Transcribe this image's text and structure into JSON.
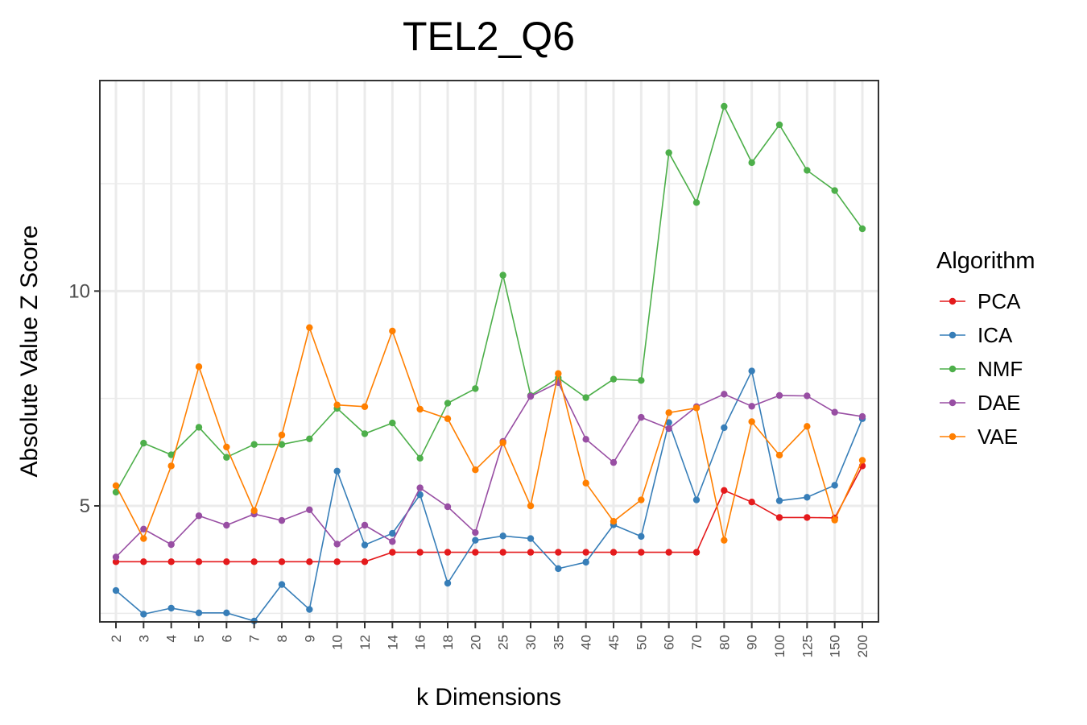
{
  "chart_data": {
    "type": "line",
    "title": "TEL2_Q6",
    "xlabel": "k Dimensions",
    "ylabel": "Absolute Value Z Score",
    "categories": [
      "2",
      "3",
      "4",
      "5",
      "6",
      "7",
      "8",
      "9",
      "10",
      "12",
      "14",
      "16",
      "18",
      "20",
      "25",
      "30",
      "35",
      "40",
      "45",
      "50",
      "60",
      "70",
      "80",
      "90",
      "100",
      "125",
      "150",
      "200"
    ],
    "yticks": [
      5,
      10
    ],
    "ylim": [
      2.3,
      14.9
    ],
    "grid": true,
    "legend": {
      "title": "Algorithm",
      "position": "right"
    },
    "series": [
      {
        "name": "PCA",
        "color": "#E41A1C",
        "values": [
          3.7,
          3.7,
          3.7,
          3.7,
          3.7,
          3.7,
          3.7,
          3.7,
          3.7,
          3.7,
          3.92,
          3.92,
          3.92,
          3.92,
          3.92,
          3.92,
          3.92,
          3.92,
          3.92,
          3.92,
          3.92,
          3.92,
          5.36,
          5.09,
          4.73,
          4.73,
          4.72,
          5.93
        ]
      },
      {
        "name": "ICA",
        "color": "#377EB8",
        "values": [
          3.03,
          2.48,
          2.62,
          2.51,
          2.51,
          2.32,
          3.17,
          2.59,
          5.81,
          4.09,
          4.36,
          5.26,
          3.2,
          4.2,
          4.3,
          4.24,
          3.54,
          3.69,
          4.56,
          4.29,
          6.94,
          5.14,
          6.82,
          8.14,
          5.12,
          5.2,
          5.48,
          7.03
        ]
      },
      {
        "name": "NMF",
        "color": "#4DAF4A",
        "values": [
          5.32,
          6.46,
          6.19,
          6.83,
          6.13,
          6.43,
          6.43,
          6.56,
          7.27,
          6.68,
          6.93,
          6.11,
          7.39,
          7.73,
          10.37,
          7.57,
          7.98,
          7.52,
          7.95,
          7.92,
          13.22,
          12.06,
          14.3,
          12.99,
          13.87,
          12.81,
          12.34,
          11.45
        ]
      },
      {
        "name": "DAE",
        "color": "#984EA3",
        "values": [
          3.81,
          4.46,
          4.1,
          4.77,
          4.55,
          4.81,
          4.66,
          4.91,
          4.11,
          4.55,
          4.17,
          5.42,
          4.98,
          4.38,
          6.5,
          7.55,
          7.87,
          6.55,
          6.01,
          7.06,
          6.8,
          7.31,
          7.6,
          7.32,
          7.57,
          7.56,
          7.18,
          7.08
        ]
      },
      {
        "name": "VAE",
        "color": "#FF7F00",
        "values": [
          5.47,
          4.24,
          5.93,
          8.24,
          6.37,
          4.89,
          6.65,
          9.15,
          7.35,
          7.31,
          9.07,
          7.25,
          7.03,
          5.84,
          6.47,
          5.0,
          8.08,
          5.53,
          4.64,
          5.14,
          7.17,
          7.28,
          4.2,
          6.96,
          6.18,
          6.85,
          4.67,
          6.06
        ]
      }
    ]
  }
}
